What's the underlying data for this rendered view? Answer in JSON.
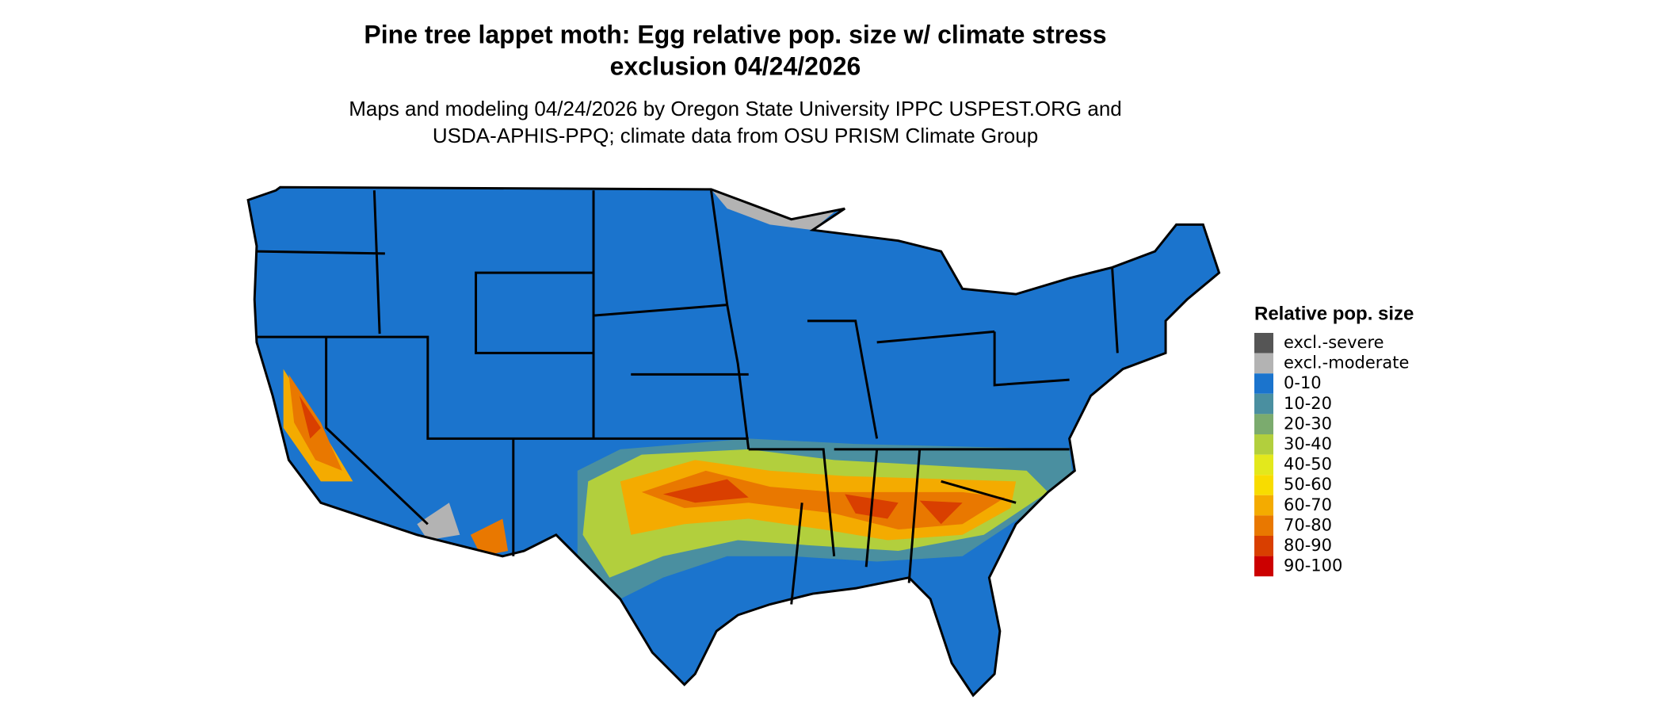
{
  "title": [
    "Pine tree lappet moth: Egg relative pop. size w/ climate stress",
    "exclusion 04/24/2026"
  ],
  "subtitle": [
    "Maps and modeling 04/24/2026 by Oregon State University IPPC USPEST.ORG and",
    "USDA-APHIS-PPQ; climate data from OSU PRISM Climate Group"
  ],
  "legend": {
    "title": "Relative pop. size",
    "items": [
      {
        "label": "excl.-severe",
        "color": "#555555"
      },
      {
        "label": "excl.-moderate",
        "color": "#b3b3b3"
      },
      {
        "label": "0-10",
        "color": "#1b74cd"
      },
      {
        "label": "10-20",
        "color": "#4a8fa0"
      },
      {
        "label": "20-30",
        "color": "#7bab6e"
      },
      {
        "label": "30-40",
        "color": "#b2cf3d"
      },
      {
        "label": "40-50",
        "color": "#e3e81c"
      },
      {
        "label": "50-60",
        "color": "#f8dc00"
      },
      {
        "label": "60-70",
        "color": "#f4ab00"
      },
      {
        "label": "70-80",
        "color": "#e97800"
      },
      {
        "label": "80-90",
        "color": "#d93f00"
      },
      {
        "label": "90-100",
        "color": "#cc0000"
      }
    ]
  }
}
